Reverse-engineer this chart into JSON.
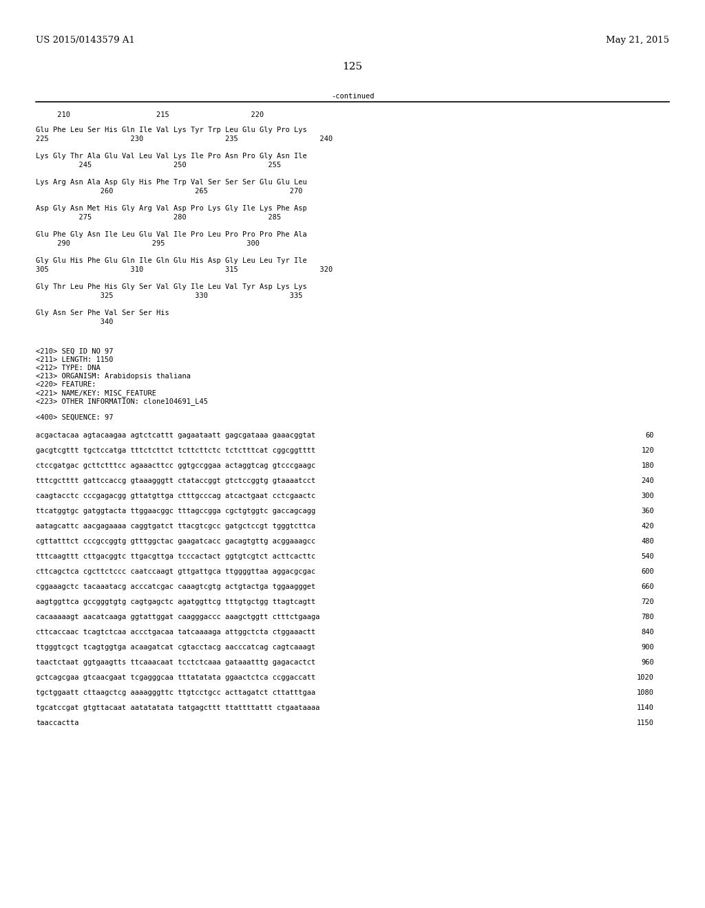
{
  "left_header": "US 2015/0143579 A1",
  "right_header": "May 21, 2015",
  "page_number": "125",
  "continued_label": "-continued",
  "background_color": "#ffffff",
  "text_color": "#000000",
  "font_size_header": 9.5,
  "font_size_body": 7.5,
  "font_size_page_num": 11,
  "ruler_line": "     210                    215                   220",
  "amino_acid_blocks": [
    {
      "seq_line": "Glu Phe Leu Ser His Gln Ile Val Lys Tyr Trp Leu Glu Gly Pro Lys",
      "num_line": "225                   230                   235                   240"
    },
    {
      "seq_line": "Lys Gly Thr Ala Glu Val Leu Val Lys Ile Pro Asn Pro Gly Asn Ile",
      "num_line": "          245                   250                   255"
    },
    {
      "seq_line": "Lys Arg Asn Ala Asp Gly His Phe Trp Val Ser Ser Ser Glu Glu Leu",
      "num_line": "               260                   265                   270"
    },
    {
      "seq_line": "Asp Gly Asn Met His Gly Arg Val Asp Pro Lys Gly Ile Lys Phe Asp",
      "num_line": "          275                   280                   285"
    },
    {
      "seq_line": "Glu Phe Gly Asn Ile Leu Glu Val Ile Pro Leu Pro Pro Pro Phe Ala",
      "num_line": "     290                   295                   300"
    },
    {
      "seq_line": "Gly Glu His Phe Glu Gln Ile Gln Glu His Asp Gly Leu Leu Tyr Ile",
      "num_line": "305                   310                   315                   320"
    },
    {
      "seq_line": "Gly Thr Leu Phe His Gly Ser Val Gly Ile Leu Val Tyr Asp Lys Lys",
      "num_line": "               325                   330                   335"
    },
    {
      "seq_line": "Gly Asn Ser Phe Val Ser Ser His",
      "num_line": "               340"
    }
  ],
  "metadata_lines": [
    "<210> SEQ ID NO 97",
    "<211> LENGTH: 1150",
    "<212> TYPE: DNA",
    "<213> ORGANISM: Arabidopsis thaliana",
    "<220> FEATURE:",
    "<221> NAME/KEY: MISC_FEATURE",
    "<223> OTHER INFORMATION: clone104691_L45"
  ],
  "sequence_label": "<400> SEQUENCE: 97",
  "nucleotide_lines": [
    [
      "acgactacaa agtacaagaa agtctcattt gagaataatt gagcgataaa gaaacggtat",
      "60"
    ],
    [
      "gacgtcgttt tgctccatga tttctcttct tcttcttctc tctctttcat cggcggtttt",
      "120"
    ],
    [
      "ctccgatgac gcttctttcc agaaacttcc ggtgccggaa actaggtcag gtcccgaagc",
      "180"
    ],
    [
      "tttcgctttt gattccaccg gtaaagggtt ctataccggt gtctccggtg gtaaaatcct",
      "240"
    ],
    [
      "caagtacctc cccgagacgg gttatgttga ctttgcccag atcactgaat cctcgaactc",
      "300"
    ],
    [
      "ttcatggtgc gatggtacta ttggaacggc tttagccgga cgctgtggtc gaccagcagg",
      "360"
    ],
    [
      "aatagcattc aacgagaaaa caggtgatct ttacgtcgcc gatgctccgt tgggtcttca",
      "420"
    ],
    [
      "cgttatttct cccgccggtg gtttggctac gaagatcacc gacagtgttg acggaaagcc",
      "480"
    ],
    [
      "tttcaagttt cttgacggtc ttgacgttga tcccactact ggtgtcgtct acttcacttc",
      "540"
    ],
    [
      "cttcagctca cgcttctccc caatccaagt gttgattgca ttggggttaa aggacgcgac",
      "600"
    ],
    [
      "cggaaagctc tacaaatacg acccatcgac caaagtcgtg actgtactga tggaaggget",
      "660"
    ],
    [
      "aagtggttca gccgggtgtg cagtgagctc agatggttcg tttgtgctgg ttagtcagtt",
      "720"
    ],
    [
      "cacaaaaagt aacatcaaga ggtattggat caagggaccc aaagctggtt ctttctgaaga",
      "780"
    ],
    [
      "cttcaccaac tcagtctcaa accctgacaa tatcaaaaga attggctcta ctggaaactt",
      "840"
    ],
    [
      "ttgggtcgct tcagtggtga acaagatcat cgtacctacg aacccatcag cagtcaaagt",
      "900"
    ],
    [
      "taactctaat ggtgaagtts ttcaaacaat tcctctcaaa gataaatttg gagacactct",
      "960"
    ],
    [
      "gctcagcgaa gtcaacgaat tcgagggcaa tttatatata ggaactctca ccggaccatt",
      "1020"
    ],
    [
      "tgctggaatt cttaagctcg aaaagggttc ttgtcctgcc acttagatct cttatttgaa",
      "1080"
    ],
    [
      "tgcatccgat gtgttacaat aatatatata tatgagcttt ttattttattt ctgaataaaa",
      "1140"
    ],
    [
      "taaccactta",
      "1150"
    ]
  ]
}
